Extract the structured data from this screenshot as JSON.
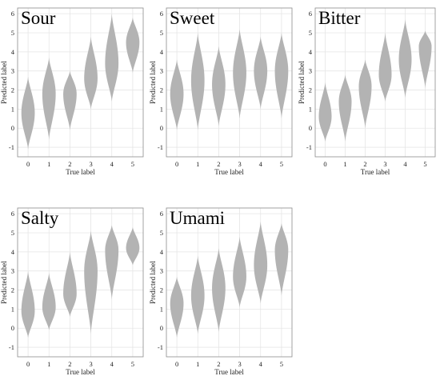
{
  "figure": {
    "background": "#ffffff",
    "violin_fill": "#b3b3b3",
    "grid_color": "#e6e6e6",
    "frame_color": "#8c8c8c"
  },
  "chart_data": [
    {
      "type": "violin",
      "title": "Sour",
      "xlabel": "True label",
      "ylabel": "Predicted label",
      "categories": [
        "0",
        "1",
        "2",
        "3",
        "4",
        "5"
      ],
      "yticks": [
        "-1",
        "0",
        "1",
        "2",
        "3",
        "4",
        "5",
        "6"
      ],
      "ylim": [
        -1.5,
        6.3
      ],
      "grid": true,
      "violins": [
        {
          "category": "0",
          "min": -1.1,
          "max": 2.7,
          "median": 0.8
        },
        {
          "category": "1",
          "min": -0.6,
          "max": 3.7,
          "median": 1.8
        },
        {
          "category": "2",
          "min": -0.1,
          "max": 3.0,
          "median": 1.8
        },
        {
          "category": "3",
          "min": 1.0,
          "max": 4.8,
          "median": 2.6
        },
        {
          "category": "4",
          "min": 1.4,
          "max": 6.0,
          "median": 3.4
        },
        {
          "category": "5",
          "min": 2.9,
          "max": 5.8,
          "median": 4.5
        }
      ]
    },
    {
      "type": "violin",
      "title": "Sweet",
      "xlabel": "True label",
      "ylabel": "Predicted label",
      "categories": [
        "0",
        "1",
        "2",
        "3",
        "4",
        "5"
      ],
      "yticks": [
        "-1",
        "0",
        "1",
        "2",
        "3",
        "4",
        "5",
        "6"
      ],
      "ylim": [
        -1.5,
        6.3
      ],
      "grid": true,
      "violins": [
        {
          "category": "0",
          "min": -0.1,
          "max": 3.6,
          "median": 1.8
        },
        {
          "category": "1",
          "min": -0.1,
          "max": 5.0,
          "median": 2.5
        },
        {
          "category": "2",
          "min": 0.1,
          "max": 4.3,
          "median": 2.3
        },
        {
          "category": "3",
          "min": 0.5,
          "max": 5.2,
          "median": 2.9
        },
        {
          "category": "4",
          "min": 1.0,
          "max": 4.8,
          "median": 3.0
        },
        {
          "category": "5",
          "min": 0.5,
          "max": 5.0,
          "median": 3.0
        }
      ]
    },
    {
      "type": "violin",
      "title": "Bitter",
      "xlabel": "True label",
      "ylabel": "Predicted label",
      "categories": [
        "0",
        "1",
        "2",
        "3",
        "4",
        "5"
      ],
      "yticks": [
        "-1",
        "0",
        "1",
        "2",
        "3",
        "4",
        "5",
        "6"
      ],
      "ylim": [
        -1.5,
        6.3
      ],
      "grid": true,
      "violins": [
        {
          "category": "0",
          "min": -0.7,
          "max": 2.4,
          "median": 0.6
        },
        {
          "category": "1",
          "min": -0.7,
          "max": 2.8,
          "median": 1.4
        },
        {
          "category": "2",
          "min": 0.0,
          "max": 3.6,
          "median": 2.2
        },
        {
          "category": "3",
          "min": 1.4,
          "max": 5.0,
          "median": 2.8
        },
        {
          "category": "4",
          "min": 1.6,
          "max": 5.7,
          "median": 3.6
        },
        {
          "category": "5",
          "min": 2.1,
          "max": 5.1,
          "median": 4.3
        }
      ]
    },
    {
      "type": "violin",
      "title": "Salty",
      "xlabel": "True label",
      "ylabel": "Predicted label",
      "categories": [
        "0",
        "1",
        "2",
        "3",
        "4",
        "5"
      ],
      "yticks": [
        "-1",
        "0",
        "1",
        "2",
        "3",
        "4",
        "5",
        "6"
      ],
      "ylim": [
        -1.5,
        6.3
      ],
      "grid": true,
      "violins": [
        {
          "category": "0",
          "min": -0.5,
          "max": 3.0,
          "median": 0.9
        },
        {
          "category": "1",
          "min": -0.1,
          "max": 2.9,
          "median": 1.1
        },
        {
          "category": "2",
          "min": 0.6,
          "max": 4.0,
          "median": 1.8
        },
        {
          "category": "3",
          "min": -0.3,
          "max": 5.1,
          "median": 3.0
        },
        {
          "category": "4",
          "min": 1.5,
          "max": 5.4,
          "median": 4.1
        },
        {
          "category": "5",
          "min": 3.3,
          "max": 5.3,
          "median": 4.2
        }
      ]
    },
    {
      "type": "violin",
      "title": "Umami",
      "xlabel": "True label",
      "ylabel": "Predicted label",
      "categories": [
        "0",
        "1",
        "2",
        "3",
        "4",
        "5"
      ],
      "yticks": [
        "-1",
        "0",
        "1",
        "2",
        "3",
        "4",
        "5",
        "6"
      ],
      "ylim": [
        -1.5,
        6.3
      ],
      "grid": true,
      "violins": [
        {
          "category": "0",
          "min": -0.5,
          "max": 2.7,
          "median": 1.3
        },
        {
          "category": "1",
          "min": -0.3,
          "max": 3.8,
          "median": 1.7
        },
        {
          "category": "2",
          "min": -0.2,
          "max": 4.2,
          "median": 2.1
        },
        {
          "category": "3",
          "min": 1.1,
          "max": 4.8,
          "median": 2.7
        },
        {
          "category": "4",
          "min": 1.3,
          "max": 5.6,
          "median": 3.3
        },
        {
          "category": "5",
          "min": 1.7,
          "max": 5.5,
          "median": 4.1
        }
      ]
    }
  ]
}
